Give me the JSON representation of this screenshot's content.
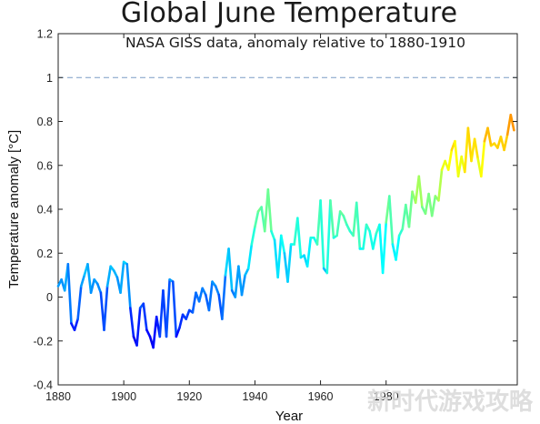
{
  "chart_data": {
    "type": "line",
    "title": "Global June Temperature",
    "subtitle": "NASA GISS data, anomaly relative to 1880-1910",
    "xlabel": "Year",
    "ylabel": "Temperature anomaly [°C]",
    "xlim": [
      1880,
      2020
    ],
    "ylim": [
      -0.4,
      1.2
    ],
    "xticks": [
      1880,
      1900,
      1920,
      1940,
      1960,
      1980
    ],
    "xtick_labels": [
      "1880",
      "1900",
      "1920",
      "1940",
      "1960",
      "1980"
    ],
    "yticks": [
      -0.4,
      -0.2,
      0,
      0.2,
      0.4,
      0.6,
      0.8,
      1,
      1.2
    ],
    "ytick_labels": [
      "-0.4",
      "-0.2",
      "0",
      "0.2",
      "0.4",
      "0.6",
      "0.8",
      "1",
      "1.2"
    ],
    "grid": false,
    "colormap": "jet",
    "reference_line": {
      "y": 1.0,
      "style": "dashed",
      "color": "#7a9cc6"
    },
    "series": [
      {
        "x": [
          1880,
          1881,
          1882,
          1883,
          1884,
          1885,
          1886,
          1887,
          1888,
          1889,
          1890,
          1891,
          1892,
          1893,
          1894,
          1895,
          1896,
          1897,
          1898,
          1899,
          1900,
          1901,
          1902,
          1903,
          1904,
          1905,
          1906,
          1907,
          1908,
          1909,
          1910,
          1911,
          1912,
          1913,
          1914,
          1915,
          1916,
          1917,
          1918,
          1919,
          1920,
          1921,
          1922,
          1923,
          1924,
          1925,
          1926,
          1927,
          1928,
          1929,
          1930,
          1931,
          1932,
          1933,
          1934,
          1935,
          1936,
          1937,
          1938,
          1939,
          1940,
          1941,
          1942,
          1943,
          1944,
          1945,
          1946,
          1947,
          1948,
          1949,
          1950,
          1951,
          1952,
          1953,
          1954,
          1955,
          1956,
          1957,
          1958,
          1959,
          1960,
          1961,
          1962,
          1963,
          1964,
          1965,
          1966,
          1967,
          1968,
          1969,
          1970,
          1971,
          1972,
          1973,
          1974,
          1975,
          1976,
          1977,
          1978,
          1979,
          1980,
          1981,
          1982,
          1983,
          1984,
          1985,
          1986,
          1987,
          1988,
          1989,
          1990,
          1991,
          1992,
          1993,
          1994,
          1995,
          1996,
          1997,
          1998,
          1999,
          2000,
          2001,
          2002,
          2003,
          2004,
          2005,
          2006,
          2007,
          2008,
          2009,
          2010,
          2011,
          2012,
          2013,
          2014,
          2015,
          2016,
          2017,
          2018,
          2019
        ],
        "y": [
          0.05,
          0.08,
          0.03,
          0.15,
          -0.12,
          -0.15,
          -0.1,
          0.05,
          0.1,
          0.15,
          0.02,
          0.08,
          0.06,
          0.02,
          -0.15,
          0.05,
          0.14,
          0.12,
          0.09,
          0.02,
          0.16,
          0.15,
          -0.05,
          -0.18,
          -0.22,
          -0.05,
          -0.03,
          -0.15,
          -0.18,
          -0.23,
          -0.09,
          -0.18,
          0.03,
          -0.18,
          0.08,
          0.07,
          -0.18,
          -0.14,
          -0.08,
          -0.1,
          -0.06,
          -0.07,
          0.02,
          -0.02,
          0.04,
          0.01,
          -0.06,
          0.07,
          0.05,
          0.01,
          -0.1,
          0.1,
          0.22,
          0.03,
          0,
          0.14,
          0.01,
          0.1,
          0.13,
          0.24,
          0.32,
          0.39,
          0.41,
          0.3,
          0.49,
          0.3,
          0.26,
          0.09,
          0.28,
          0.2,
          0.07,
          0.24,
          0.24,
          0.36,
          0.18,
          0.19,
          0.14,
          0.27,
          0.27,
          0.24,
          0.44,
          0.13,
          0.11,
          0.44,
          0.27,
          0.28,
          0.39,
          0.37,
          0.33,
          0.3,
          0.28,
          0.43,
          0.22,
          0.22,
          0.33,
          0.3,
          0.22,
          0.29,
          0.33,
          0.11,
          0.34,
          0.46,
          0.24,
          0.17,
          0.28,
          0.31,
          0.42,
          0.32,
          0.48,
          0.43,
          0.55,
          0.41,
          0.38,
          0.47,
          0.37,
          0.46,
          0.44,
          0.58,
          0.62,
          0.58,
          0.67,
          0.71,
          0.55,
          0.64,
          0.57,
          0.77,
          0.62,
          0.72,
          0.63,
          0.55,
          0.71,
          0.77,
          0.69,
          0.7,
          0.68,
          0.73,
          0.67,
          0.74,
          0.83,
          0.76
        ]
      }
    ]
  },
  "watermark": "新时代游戏攻略"
}
